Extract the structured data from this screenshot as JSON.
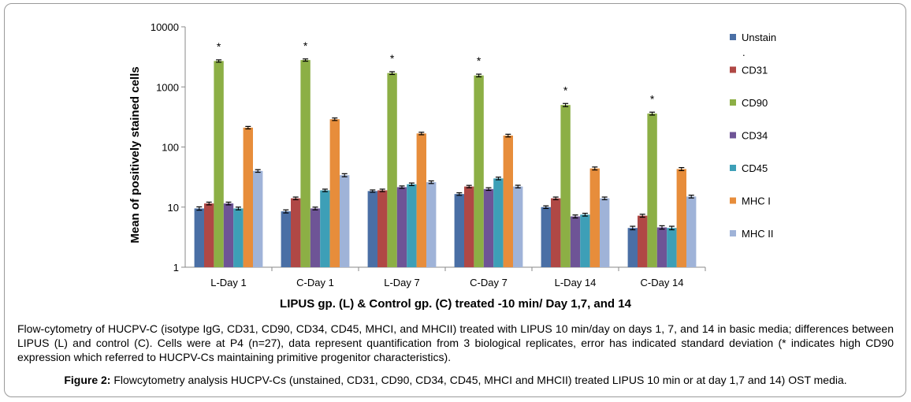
{
  "chart_data": {
    "type": "bar",
    "yscale": "log",
    "ylim": [
      1,
      10000
    ],
    "ytick_labels": [
      "1",
      "10",
      "100",
      "1000",
      "10000"
    ],
    "ylabel": "Mean of  positively stained cells",
    "xlabel": "LIPUS gp. (L) & Control gp. (C) treated -10 min/ Day 1,7, and 14",
    "categories": [
      "L-Day 1",
      "C-Day 1",
      "L-Day 7",
      "C-Day 7",
      "L-Day 14",
      "C-Day 14"
    ],
    "legend_position": "right",
    "grid": false,
    "annotation": "*",
    "annotated_series": "CD90",
    "series": [
      {
        "name": "Unstain",
        "color": "#4a6fa5",
        "values": [
          9.5,
          8.5,
          18.5,
          16.5,
          10,
          4.5
        ],
        "errors": [
          0.6,
          0.5,
          0.8,
          0.8,
          0.5,
          0.3
        ]
      },
      {
        "name": "CD31",
        "color": "#b04845",
        "values": [
          11.5,
          14,
          19,
          22,
          14,
          7.2
        ],
        "errors": [
          0.6,
          0.7,
          0.9,
          1,
          0.7,
          0.4
        ]
      },
      {
        "name": "CD90",
        "color": "#8caf45",
        "values": [
          2700,
          2800,
          1700,
          1550,
          500,
          360
        ],
        "errors": [
          120,
          120,
          90,
          80,
          30,
          20
        ]
      },
      {
        "name": "CD34",
        "color": "#6e5496",
        "values": [
          11.5,
          9.5,
          21.5,
          20,
          7,
          4.6
        ],
        "errors": [
          0.6,
          0.5,
          1,
          1,
          0.4,
          0.3
        ]
      },
      {
        "name": "CD45",
        "color": "#3d9fb7",
        "values": [
          9.5,
          19,
          24,
          30,
          7.5,
          4.5
        ],
        "errors": [
          0.5,
          0.9,
          1.2,
          1.5,
          0.4,
          0.3
        ]
      },
      {
        "name": "MHC I",
        "color": "#e78d3b",
        "values": [
          210,
          290,
          168,
          155,
          44,
          43
        ],
        "errors": [
          10,
          14,
          8,
          8,
          2.5,
          2.5
        ]
      },
      {
        "name": "MHC II",
        "color": "#9fb3d8",
        "values": [
          40,
          34,
          26,
          22,
          14,
          15
        ],
        "errors": [
          2,
          2,
          1.3,
          1.1,
          0.7,
          0.8
        ]
      }
    ],
    "legend_labels": [
      "Unstain",
      "CD31",
      "CD90",
      "CD34",
      "CD45",
      "MHC I",
      "MHC II"
    ],
    "legend_extra_mark": "."
  },
  "caption": "Flow-cytometry of HUCPV-C (isotype IgG, CD31, CD90, CD34, CD45, MHCI, and MHCII) treated with LIPUS 10 min/day on days 1, 7, and 14 in basic media; differences between LIPUS (L) and control (C). Cells were at P4 (n=27), data represent quantification from 3 biological replicates, error has indicated standard deviation (* indicates high CD90 expression which referred to HUCPV-Cs maintaining primitive progenitor characteristics).",
  "figure_caption": {
    "label": "Figure 2:",
    "text": " Flowcytometry analysis HUCPV-Cs (unstained, CD31, CD90, CD34, CD45, MHCI and MHCII) treated LIPUS 10 min or at day 1,7 and 14) OST media."
  }
}
